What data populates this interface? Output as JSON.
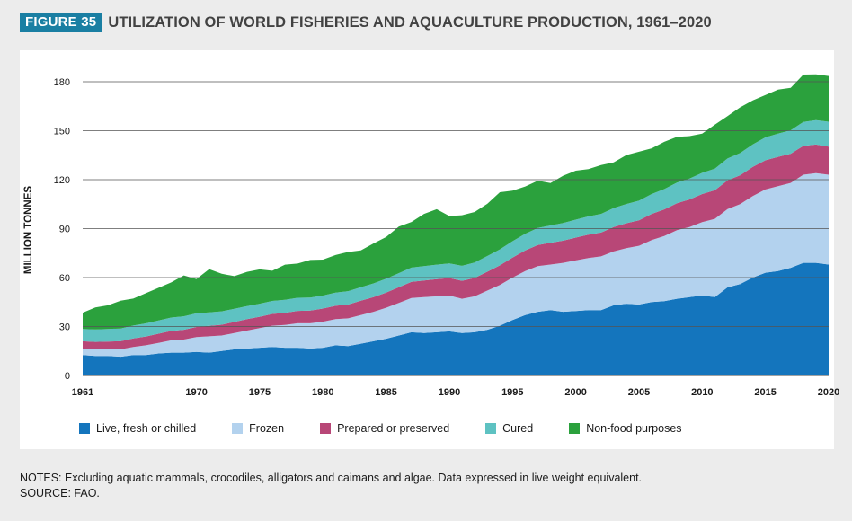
{
  "header": {
    "figure_label": "FIGURE 35",
    "title": "UTILIZATION OF WORLD FISHERIES AND AQUACULTURE PRODUCTION, 1961–2020"
  },
  "notes": {
    "line1": "NOTES: Excluding aquatic mammals, crocodiles, alligators and caimans and algae. Data expressed in live weight equivalent.",
    "line2": "SOURCE: FAO."
  },
  "chart_data": {
    "type": "area",
    "stacked": true,
    "ylabel": "MILLION TONNES",
    "xlabel": "",
    "ylim": [
      0,
      180
    ],
    "yticks": [
      0,
      30,
      60,
      90,
      120,
      150,
      180
    ],
    "xticks": [
      1961,
      1970,
      1975,
      1980,
      1985,
      1990,
      1995,
      2000,
      2005,
      2010,
      2015,
      2020
    ],
    "grid": "horizontal",
    "legend_position": "bottom",
    "x": [
      1961,
      1962,
      1963,
      1964,
      1965,
      1966,
      1967,
      1968,
      1969,
      1970,
      1971,
      1972,
      1973,
      1974,
      1975,
      1976,
      1977,
      1978,
      1979,
      1980,
      1981,
      1982,
      1983,
      1984,
      1985,
      1986,
      1987,
      1988,
      1989,
      1990,
      1991,
      1992,
      1993,
      1994,
      1995,
      1996,
      1997,
      1998,
      1999,
      2000,
      2001,
      2002,
      2003,
      2004,
      2005,
      2006,
      2007,
      2008,
      2009,
      2010,
      2011,
      2012,
      2013,
      2014,
      2015,
      2016,
      2017,
      2018,
      2019,
      2020
    ],
    "series": [
      {
        "name": "Live, fresh or chilled",
        "color": "#1475bd",
        "values": [
          12.5,
          12,
          12,
          11.5,
          12.5,
          12.5,
          13.5,
          14,
          14,
          14.5,
          14,
          15,
          16,
          16.5,
          17,
          17.5,
          17,
          17,
          16.5,
          17,
          18.5,
          18,
          19.5,
          21,
          22.5,
          24.5,
          26.5,
          26,
          26.5,
          27,
          26,
          26.5,
          28,
          30.5,
          34,
          37,
          39,
          40,
          39,
          39.5,
          40,
          40,
          43,
          44,
          43.5,
          45,
          45.5,
          47,
          48,
          49,
          48,
          54,
          56,
          60,
          63,
          64,
          66,
          69,
          69,
          68
        ]
      },
      {
        "name": "Frozen",
        "color": "#b3d2ee",
        "values": [
          4,
          4,
          4,
          4.5,
          5,
          6,
          6.5,
          7.5,
          8,
          9,
          10,
          9.5,
          10,
          11,
          12,
          13,
          14,
          15,
          15.5,
          16,
          16,
          17,
          17.5,
          18,
          19,
          20,
          21,
          22,
          22,
          22,
          21,
          22,
          24,
          25,
          26,
          27,
          28,
          28,
          30,
          31,
          32,
          33,
          33,
          34,
          36,
          38,
          40,
          42,
          43,
          45,
          48,
          48,
          49,
          50,
          51,
          52,
          52,
          54,
          55,
          55
        ]
      },
      {
        "name": "Prepared or preserved",
        "color": "#b84777",
        "values": [
          4.5,
          4.6,
          4.8,
          5,
          5.2,
          5.4,
          5.6,
          5.8,
          6,
          6.2,
          6.4,
          6.6,
          6.8,
          7,
          7,
          7.2,
          7.4,
          7.6,
          7.8,
          8,
          8.2,
          8.5,
          8.8,
          9,
          9.3,
          9.6,
          9.9,
          10.2,
          10.5,
          10.7,
          11,
          11.3,
          11.6,
          12,
          12.3,
          12.6,
          13,
          13.3,
          13.6,
          14,
          14.3,
          14.6,
          15,
          15.3,
          15.6,
          16,
          16.3,
          16.6,
          16.9,
          17.2,
          17.5,
          17.6,
          17.7,
          17.8,
          17.9,
          18,
          17.9,
          17.7,
          17.5,
          17.2
        ]
      },
      {
        "name": "Cured",
        "color": "#5ec2c2",
        "values": [
          7.5,
          7.6,
          7.7,
          7.8,
          7.9,
          8,
          8.1,
          8.2,
          8.3,
          8.4,
          8.3,
          8.2,
          8.1,
          8,
          8,
          8,
          8,
          8,
          8,
          8,
          8.1,
          8.2,
          8.3,
          8.4,
          8.5,
          8.6,
          8.7,
          8.8,
          8.9,
          9,
          9.2,
          9.4,
          9.6,
          9.8,
          10,
          10.2,
          10.4,
          10.6,
          10.8,
          11,
          11.2,
          11.4,
          11.6,
          11.8,
          12,
          12.2,
          12.4,
          12.6,
          12.8,
          13,
          13.2,
          13.4,
          13.6,
          13.8,
          14,
          14.2,
          14.4,
          14.7,
          15,
          15.3
        ]
      },
      {
        "name": "Non-food purposes",
        "color": "#2ba13d",
        "values": [
          10,
          13.5,
          14.5,
          17,
          16.5,
          18.5,
          20,
          21.5,
          25,
          21,
          26.5,
          23,
          20,
          21,
          21,
          18.5,
          21.5,
          21,
          23,
          22,
          23,
          24,
          22.5,
          24.5,
          25.5,
          28.5,
          28,
          32,
          34,
          29,
          31,
          31,
          32,
          35,
          31,
          29,
          29,
          26,
          29,
          30,
          29,
          30,
          28,
          30,
          30,
          28,
          29,
          28,
          26,
          24,
          27,
          26,
          28,
          27,
          26,
          27,
          26,
          29,
          28,
          28
        ]
      }
    ]
  }
}
